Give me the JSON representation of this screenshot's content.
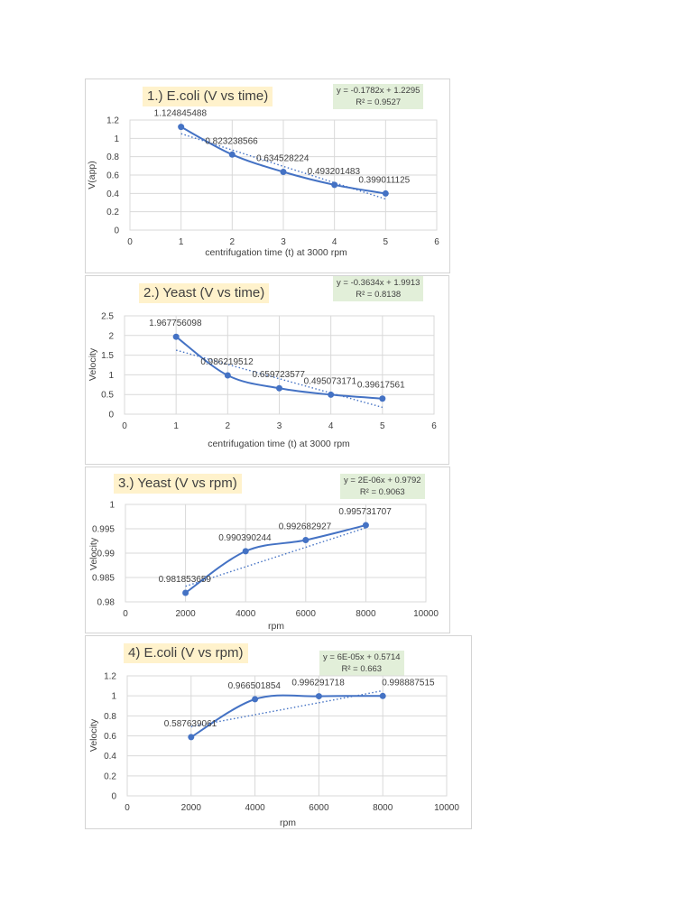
{
  "colors": {
    "series": "#4472c4",
    "grid": "#d9d9d9",
    "title_bg": "#fff2cc",
    "equation_bg": "#e2efd9"
  },
  "chart_data": [
    {
      "type": "scatter",
      "title": "1.)  E.coli (V vs time)",
      "xlabel": "centrifugation time (t) at 3000 rpm",
      "ylabel": "V(app)",
      "xlim": [
        0,
        6
      ],
      "ylim": [
        0,
        1.2
      ],
      "xticks": [
        "0",
        "1",
        "2",
        "3",
        "4",
        "5",
        "6"
      ],
      "yticks": [
        "0",
        "0.2",
        "0.4",
        "0.6",
        "0.8",
        "1",
        "1.2"
      ],
      "x": [
        1,
        2,
        3,
        4,
        5
      ],
      "y": [
        1.124845488,
        0.823238566,
        0.634528224,
        0.493201483,
        0.399011125
      ],
      "data_labels": [
        "1.124845488",
        "0.823238566",
        "0.634528224",
        "0.493201483",
        "0.399011125"
      ],
      "trendline": {
        "type": "linear",
        "slope": -0.1782,
        "intercept": 1.2295,
        "equation": "y = -0.1782x + 1.2295",
        "r2": "R² = 0.9527"
      },
      "grid": true,
      "smooth_line": true
    },
    {
      "type": "scatter",
      "title": "2.)  Yeast (V vs time)",
      "xlabel": "centrifugation time (t) at 3000 rpm",
      "ylabel": "Velocity",
      "xlim": [
        0,
        6
      ],
      "ylim": [
        0,
        2.5
      ],
      "xticks": [
        "0",
        "1",
        "2",
        "3",
        "4",
        "5",
        "6"
      ],
      "yticks": [
        "0",
        "0.5",
        "1",
        "1.5",
        "2",
        "2.5"
      ],
      "x": [
        1,
        2,
        3,
        4,
        5
      ],
      "y": [
        1.967756098,
        0.986219512,
        0.659723577,
        0.495073171,
        0.39617561
      ],
      "data_labels": [
        "1.967756098",
        "0.986219512",
        "0.659723577",
        "0.495073171",
        "0.39617561"
      ],
      "trendline": {
        "type": "linear",
        "slope": -0.3634,
        "intercept": 1.9913,
        "equation": "y = -0.3634x + 1.9913",
        "r2": "R² = 0.8138"
      },
      "grid": true,
      "smooth_line": true
    },
    {
      "type": "scatter",
      "title": "3.) Yeast (V vs rpm)",
      "xlabel": "rpm",
      "ylabel": "Velocity",
      "xlim": [
        0,
        10000
      ],
      "ylim": [
        0.98,
        1
      ],
      "xticks": [
        "0",
        "2000",
        "4000",
        "6000",
        "8000",
        "10000"
      ],
      "yticks": [
        "0.98",
        "0.985",
        "0.99",
        "0.995",
        "1"
      ],
      "x": [
        2000,
        4000,
        6000,
        8000
      ],
      "y": [
        0.981853659,
        0.990390244,
        0.992682927,
        0.995731707
      ],
      "data_labels": [
        "0.981853659",
        "0.990390244",
        "0.992682927",
        "0.995731707"
      ],
      "trendline": {
        "type": "linear",
        "slope": 2e-06,
        "intercept": 0.9792,
        "equation": "y = 2E-06x + 0.9792",
        "r2": "R² = 0.9063"
      },
      "grid": true,
      "smooth_line": true
    },
    {
      "type": "scatter",
      "title": "4) E.coli (V vs rpm)",
      "xlabel": "rpm",
      "ylabel": "Velocity",
      "xlim": [
        0,
        10000
      ],
      "ylim": [
        0,
        1.2
      ],
      "xticks": [
        "0",
        "2000",
        "4000",
        "6000",
        "8000",
        "10000"
      ],
      "yticks": [
        "0",
        "0.2",
        "0.4",
        "0.6",
        "0.8",
        "1",
        "1.2"
      ],
      "x": [
        2000,
        4000,
        6000,
        8000
      ],
      "y": [
        0.587639061,
        0.966501854,
        0.996291718,
        0.998887515
      ],
      "data_labels": [
        "0.587639061",
        "0.966501854",
        "0.996291718",
        "0.998887515"
      ],
      "trendline": {
        "type": "linear",
        "slope": 6e-05,
        "intercept": 0.5714,
        "equation": "y = 6E-05x + 0.5714",
        "r2": "R² = 0.663"
      },
      "grid": true,
      "smooth_line": true
    }
  ]
}
